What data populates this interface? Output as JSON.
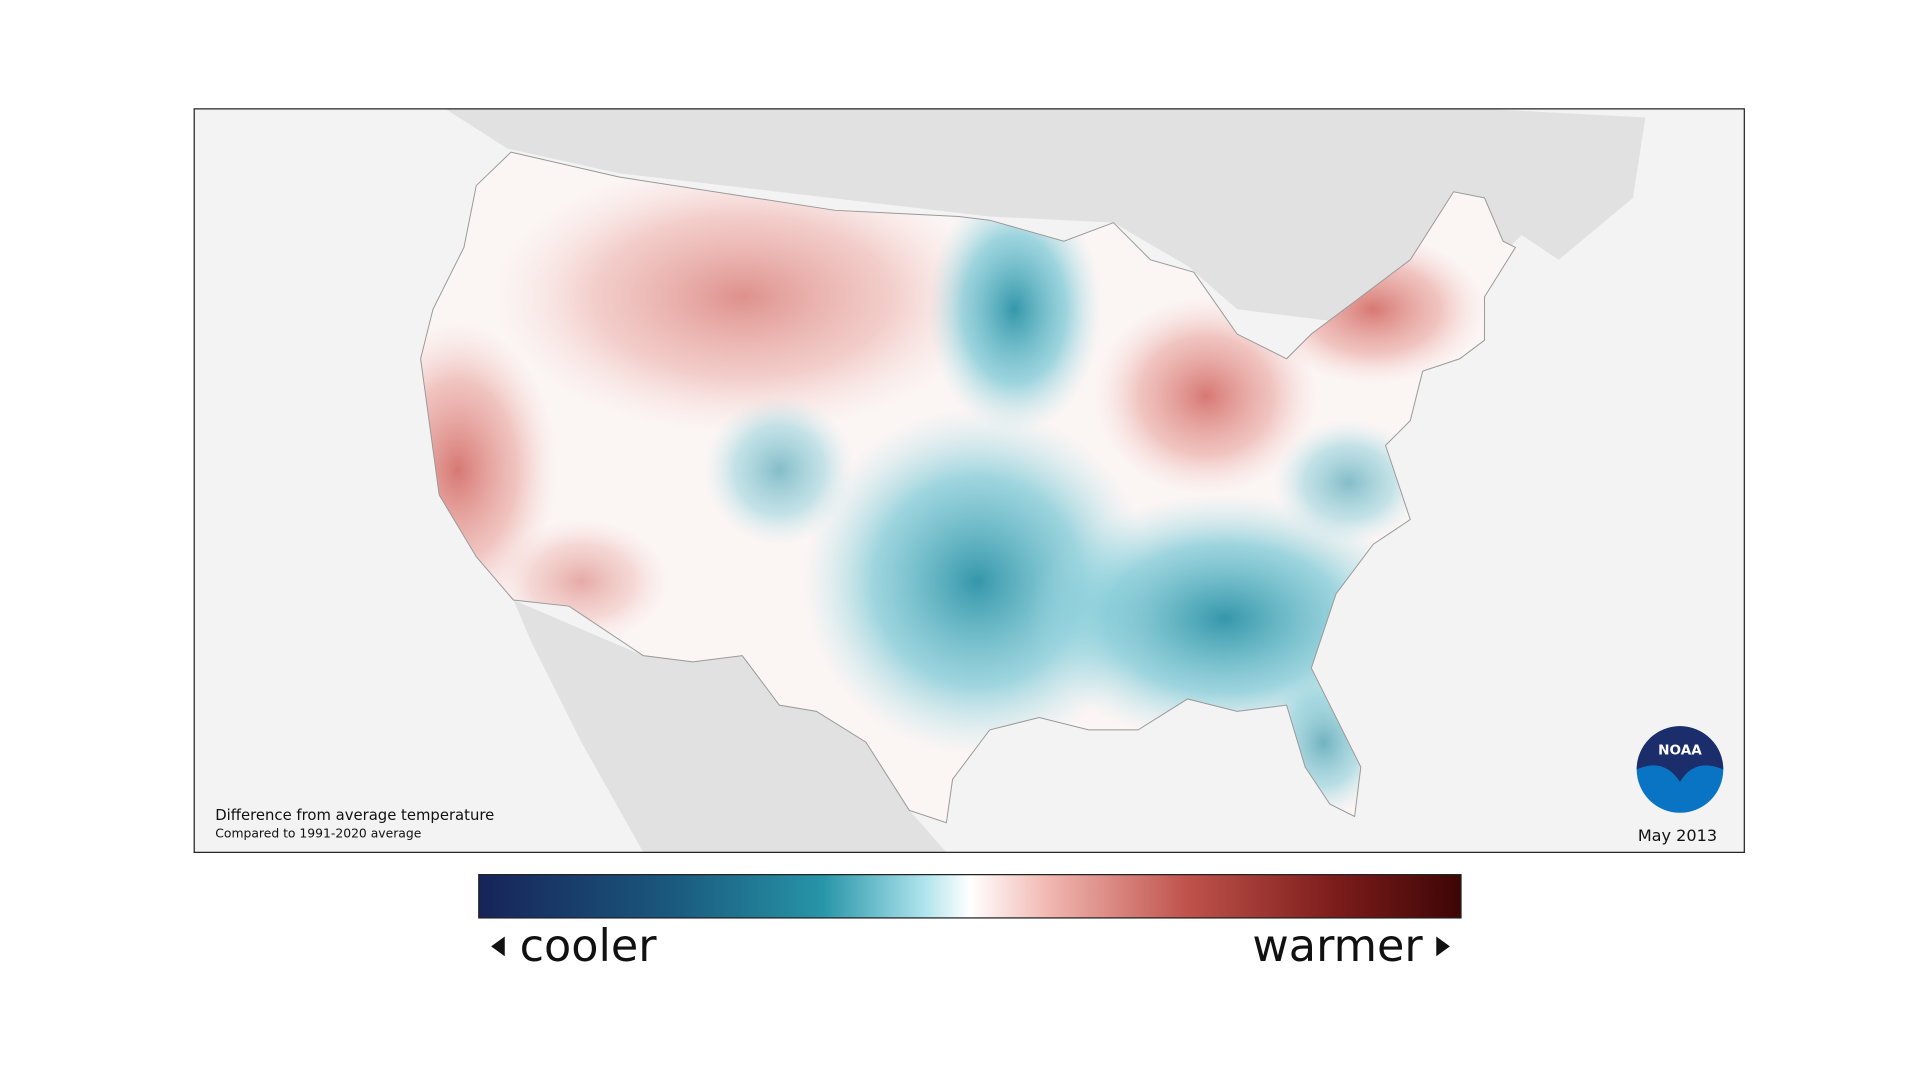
{
  "map": {
    "caption": "Difference from average temperature",
    "subcaption": "Compared to 1991-2020 average",
    "date": "May 2013",
    "logo": "NOAA"
  },
  "legend": {
    "low_label": "cooler",
    "high_label": "warmer"
  }
}
